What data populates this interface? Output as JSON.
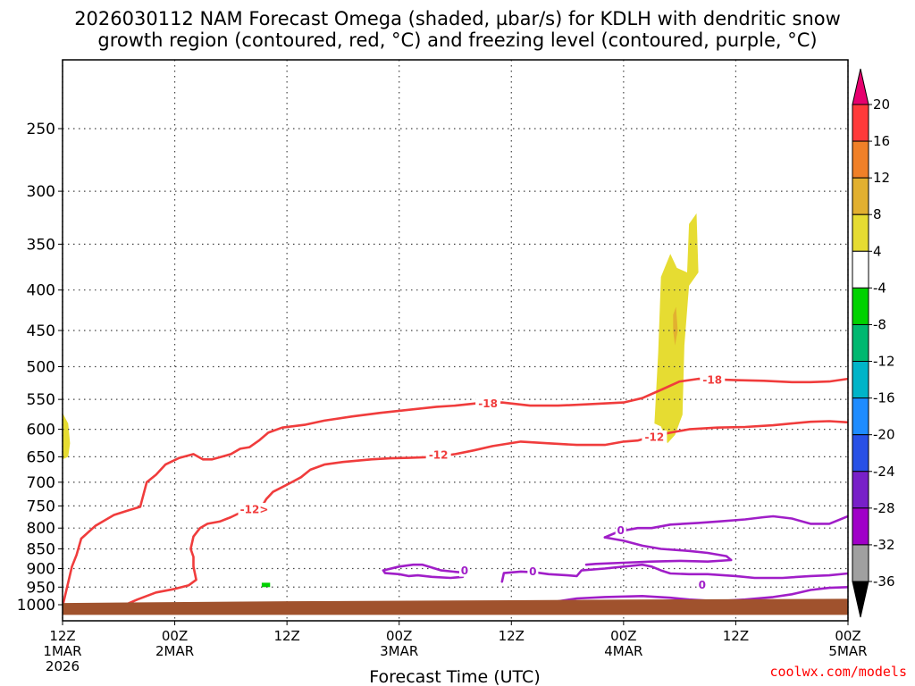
{
  "title": {
    "line1": "2026030112 NAM Forecast Omega (shaded, µbar/s) for KDLH with dendritic snow",
    "line2": "growth region (contoured, red, °C) and freezing level (contoured, purple, °C)"
  },
  "credit": "coolwx.com/models",
  "chart_data": {
    "type": "time-height cross section",
    "xlabel": "Forecast Time (UTC)",
    "ylabel": "",
    "x_ticks": [
      {
        "hour": 0,
        "label": "12Z",
        "sub": "1MAR",
        "sub2": "2026"
      },
      {
        "hour": 12,
        "label": "00Z",
        "sub": "2MAR"
      },
      {
        "hour": 24,
        "label": "12Z",
        "sub": ""
      },
      {
        "hour": 36,
        "label": "00Z",
        "sub": "3MAR"
      },
      {
        "hour": 48,
        "label": "12Z",
        "sub": ""
      },
      {
        "hour": 60,
        "label": "00Z",
        "sub": "4MAR"
      },
      {
        "hour": 72,
        "label": "12Z",
        "sub": ""
      },
      {
        "hour": 84,
        "label": "00Z",
        "sub": "5MAR"
      }
    ],
    "xlim_hours": [
      0,
      84
    ],
    "y_ticks": [
      250,
      300,
      350,
      400,
      450,
      500,
      550,
      600,
      650,
      700,
      750,
      800,
      850,
      900,
      950,
      1000
    ],
    "ylim_hpa": [
      200,
      1030
    ],
    "y_scale": "log",
    "grid": true,
    "colorbar": {
      "title": "Omega (µbar/s)",
      "labels": [
        "20",
        "16",
        "12",
        "8",
        "4",
        "-4",
        "-8",
        "-12",
        "-16",
        "-20",
        "-24",
        "-28",
        "-32",
        "-36"
      ],
      "bands": [
        {
          "from": 16,
          "to": 20,
          "color": "#ff3a3a"
        },
        {
          "from": 12,
          "to": 16,
          "color": "#f08028"
        },
        {
          "from": 8,
          "to": 12,
          "color": "#e2b030"
        },
        {
          "from": 4,
          "to": 8,
          "color": "#e6dc32"
        },
        {
          "from": -4,
          "to": 4,
          "color": "#ffffff"
        },
        {
          "from": -8,
          "to": -4,
          "color": "#00d200"
        },
        {
          "from": -12,
          "to": -8,
          "color": "#00b870"
        },
        {
          "from": -16,
          "to": -12,
          "color": "#00b4c8"
        },
        {
          "from": -20,
          "to": -16,
          "color": "#1e8cff"
        },
        {
          "from": -24,
          "to": -20,
          "color": "#2850e6"
        },
        {
          "from": -28,
          "to": -24,
          "color": "#7820c8"
        },
        {
          "from": -32,
          "to": -28,
          "color": "#a000c8"
        },
        {
          "from": -36,
          "to": -32,
          "color": "#a0a0a0"
        }
      ],
      "over_color": "#e6006e",
      "under_color": "#000000"
    },
    "shaded_regions": [
      {
        "name": "rising-motion-4-8",
        "value_range": [
          4,
          8
        ],
        "color": "#e6dc32",
        "polygon": [
          [
            63.3,
            590
          ],
          [
            63.7,
            480
          ],
          [
            64.0,
            385
          ],
          [
            65.0,
            360
          ],
          [
            65.7,
            375
          ],
          [
            66.8,
            380
          ],
          [
            67.0,
            330
          ],
          [
            67.8,
            320
          ],
          [
            68.0,
            380
          ],
          [
            67.0,
            395
          ],
          [
            66.5,
            470
          ],
          [
            66.3,
            575
          ],
          [
            65.5,
            610
          ],
          [
            64.7,
            625
          ],
          [
            64.0,
            595
          ]
        ]
      },
      {
        "name": "rising-motion-8-12",
        "value_range": [
          8,
          12
        ],
        "color": "#e2b030",
        "polygon": [
          [
            65.3,
            430
          ],
          [
            65.6,
            420
          ],
          [
            65.8,
            450
          ],
          [
            65.5,
            470
          ],
          [
            65.3,
            450
          ]
        ]
      },
      {
        "name": "left-edge-rising",
        "value_range": [
          4,
          8
        ],
        "color": "#e6dc32",
        "polygon": [
          [
            0,
            572
          ],
          [
            0.6,
            590
          ],
          [
            0.8,
            625
          ],
          [
            0.6,
            650
          ],
          [
            0,
            655
          ]
        ]
      },
      {
        "name": "sinking-green-1",
        "value_range": [
          -8,
          -4
        ],
        "color": "#00d200",
        "polygon": [
          [
            19.3,
            752
          ],
          [
            20.2,
            752
          ],
          [
            20.2,
            768
          ],
          [
            19.3,
            768
          ]
        ]
      },
      {
        "name": "sinking-green-2",
        "value_range": [
          -8,
          -4
        ],
        "color": "#00d200",
        "polygon": [
          [
            21.3,
            938
          ],
          [
            22.2,
            938
          ],
          [
            22.2,
            950
          ],
          [
            21.3,
            950
          ]
        ]
      }
    ],
    "contours": [
      {
        "name": "dgz-top",
        "level_c": -18,
        "color": "#f03c3c",
        "points": [
          [
            0,
            1005
          ],
          [
            1.0,
            895
          ],
          [
            1.5,
            865
          ],
          [
            2.0,
            825
          ],
          [
            3.5,
            795
          ],
          [
            5.5,
            770
          ],
          [
            7.0,
            760
          ],
          [
            8.3,
            752
          ],
          [
            9.0,
            700
          ],
          [
            10.0,
            685
          ],
          [
            11.0,
            665
          ],
          [
            12.5,
            652
          ],
          [
            14.0,
            645
          ],
          [
            15.0,
            655
          ],
          [
            16.0,
            655
          ],
          [
            17.0,
            650
          ],
          [
            18.0,
            645
          ],
          [
            19.0,
            635
          ],
          [
            20.0,
            632
          ],
          [
            21.0,
            620
          ],
          [
            22.0,
            606
          ],
          [
            23.5,
            597
          ],
          [
            26.0,
            592
          ],
          [
            28.0,
            585
          ],
          [
            31.0,
            578
          ],
          [
            34.0,
            572
          ],
          [
            37.0,
            567
          ],
          [
            40.0,
            562
          ],
          [
            42.0,
            560
          ],
          [
            44.5,
            556
          ],
          [
            47.0,
            555
          ],
          [
            50.0,
            560
          ],
          [
            53.0,
            560
          ],
          [
            56.0,
            558
          ],
          [
            60.0,
            555
          ],
          [
            62.0,
            548
          ],
          [
            64.0,
            535
          ],
          [
            66.0,
            522
          ],
          [
            68.0,
            518
          ],
          [
            72.0,
            520
          ],
          [
            75.0,
            521
          ],
          [
            78.0,
            523
          ],
          [
            80.0,
            523
          ],
          [
            82.0,
            522
          ],
          [
            84.0,
            518
          ]
        ]
      },
      {
        "name": "dgz-bottom",
        "level_c": -12,
        "color": "#f03c3c",
        "points": [
          [
            6.3,
            1005
          ],
          [
            8.0,
            985
          ],
          [
            10.0,
            965
          ],
          [
            12.0,
            955
          ],
          [
            13.5,
            945
          ],
          [
            14.3,
            930
          ],
          [
            14.0,
            895
          ],
          [
            14.0,
            870
          ],
          [
            13.7,
            850
          ],
          [
            14.0,
            820
          ],
          [
            14.7,
            800
          ],
          [
            15.5,
            790
          ],
          [
            16.8,
            785
          ],
          [
            18.0,
            775
          ],
          [
            19.0,
            765
          ],
          [
            20.0,
            760
          ],
          [
            21.3,
            758
          ],
          [
            21.5,
            745
          ],
          [
            21.8,
            735
          ],
          [
            22.5,
            720
          ],
          [
            23.5,
            710
          ],
          [
            24.5,
            700
          ],
          [
            25.5,
            690
          ],
          [
            26.5,
            675
          ],
          [
            28.0,
            665
          ],
          [
            30.0,
            660
          ],
          [
            33.0,
            655
          ],
          [
            35.0,
            653
          ],
          [
            37.0,
            652
          ],
          [
            40.0,
            650
          ],
          [
            42.0,
            645
          ],
          [
            44.0,
            638
          ],
          [
            46.0,
            630
          ],
          [
            49.0,
            622
          ],
          [
            52.0,
            625
          ],
          [
            55.0,
            628
          ],
          [
            58.0,
            628
          ],
          [
            60.0,
            622
          ],
          [
            61.5,
            620
          ],
          [
            63.0,
            613
          ],
          [
            65.0,
            606
          ],
          [
            67.0,
            600
          ],
          [
            70.0,
            597
          ],
          [
            73.0,
            596
          ],
          [
            76.0,
            593
          ],
          [
            78.0,
            590
          ],
          [
            80.0,
            587
          ],
          [
            82.0,
            586
          ],
          [
            84.0,
            588
          ]
        ]
      },
      {
        "name": "frz-lower-left",
        "level_c": 0,
        "color": "#a01ec8",
        "points": [
          [
            34.3,
            905
          ],
          [
            36.0,
            895
          ],
          [
            37.5,
            890
          ],
          [
            38.5,
            890
          ],
          [
            40.5,
            905
          ],
          [
            42.5,
            910
          ],
          [
            42.8,
            922
          ],
          [
            41.5,
            925
          ],
          [
            39.5,
            922
          ],
          [
            38.0,
            918
          ],
          [
            37.0,
            920
          ],
          [
            36.0,
            915
          ],
          [
            34.5,
            912
          ],
          [
            34.3,
            905
          ]
        ]
      },
      {
        "name": "frz-lower-mid",
        "level_c": 0,
        "color": "#a01ec8",
        "points": [
          [
            47.0,
            935
          ],
          [
            47.2,
            912
          ],
          [
            49.0,
            908
          ],
          [
            50.5,
            910
          ],
          [
            52.0,
            915
          ],
          [
            54.0,
            918
          ],
          [
            55.0,
            920
          ],
          [
            55.5,
            905
          ],
          [
            58.0,
            900
          ],
          [
            60.0,
            895
          ],
          [
            62.0,
            890
          ],
          [
            63.0,
            895
          ],
          [
            64.0,
            905
          ],
          [
            65.0,
            913
          ],
          [
            67.0,
            915
          ],
          [
            69.0,
            915
          ],
          [
            72.0,
            920
          ],
          [
            74.0,
            925
          ],
          [
            77.0,
            925
          ],
          [
            80.0,
            920
          ],
          [
            82.0,
            918
          ],
          [
            84.0,
            913
          ]
        ]
      },
      {
        "name": "frz-mid-upper",
        "level_c": 0,
        "color": "#a01ec8",
        "points": [
          [
            58.0,
            822
          ],
          [
            59.5,
            808
          ],
          [
            61.5,
            800
          ],
          [
            63.0,
            800
          ],
          [
            65.0,
            792
          ],
          [
            68.0,
            788
          ],
          [
            70.0,
            785
          ],
          [
            73.0,
            780
          ],
          [
            75.0,
            775
          ],
          [
            76.0,
            773
          ],
          [
            78.0,
            778
          ],
          [
            80.0,
            790
          ],
          [
            82.0,
            790
          ],
          [
            84.0,
            773
          ]
        ]
      },
      {
        "name": "frz-inner",
        "level_c": 0,
        "color": "#a01ec8",
        "points": [
          [
            58.0,
            822
          ],
          [
            60.0,
            830
          ],
          [
            62.0,
            842
          ],
          [
            64.0,
            850
          ],
          [
            67.0,
            855
          ],
          [
            69.0,
            860
          ],
          [
            71.0,
            868
          ],
          [
            71.5,
            878
          ],
          [
            69.0,
            882
          ],
          [
            66.0,
            880
          ],
          [
            63.0,
            882
          ],
          [
            60.0,
            885
          ],
          [
            57.0,
            888
          ],
          [
            56.0,
            890
          ]
        ]
      },
      {
        "name": "frz-bottom",
        "level_c": 0,
        "color": "#a01ec8",
        "points": [
          [
            53.0,
            990
          ],
          [
            55.0,
            982
          ],
          [
            58.0,
            978
          ],
          [
            62.0,
            975
          ],
          [
            65.0,
            980
          ],
          [
            67.0,
            985
          ],
          [
            70.0,
            990
          ],
          [
            73.0,
            985
          ],
          [
            76.0,
            978
          ],
          [
            78.0,
            970
          ],
          [
            80.0,
            958
          ],
          [
            82.0,
            952
          ],
          [
            84.0,
            950
          ]
        ]
      }
    ],
    "contour_labels": [
      {
        "text": "-18",
        "hour": 45.5,
        "hpa": 556,
        "color": "#f03c3c"
      },
      {
        "text": "-18",
        "hour": 69.5,
        "hpa": 519,
        "color": "#f03c3c"
      },
      {
        "text": "-12",
        "hour": 40.2,
        "hpa": 646,
        "color": "#f03c3c"
      },
      {
        "text": "-12",
        "hour": 63.3,
        "hpa": 613,
        "color": "#f03c3c"
      },
      {
        "text": "-12>",
        "hour": 20.5,
        "hpa": 757,
        "color": "#f03c3c"
      },
      {
        "text": "0",
        "hour": 43.0,
        "hpa": 905,
        "color": "#a01ec8"
      },
      {
        "text": "0",
        "hour": 50.3,
        "hpa": 907,
        "color": "#a01ec8"
      },
      {
        "text": "0",
        "hour": 59.7,
        "hpa": 805,
        "color": "#a01ec8"
      },
      {
        "text": "0",
        "hour": 68.4,
        "hpa": 943,
        "color": "#a01ec8"
      }
    ],
    "terrain": {
      "color": "#a0522d",
      "surface_hpa": [
        1030,
        1030
      ],
      "top_hpa_series": [
        [
          0,
          995
        ],
        [
          24,
          990
        ],
        [
          48,
          987
        ],
        [
          60,
          985
        ],
        [
          84,
          983
        ]
      ]
    }
  }
}
